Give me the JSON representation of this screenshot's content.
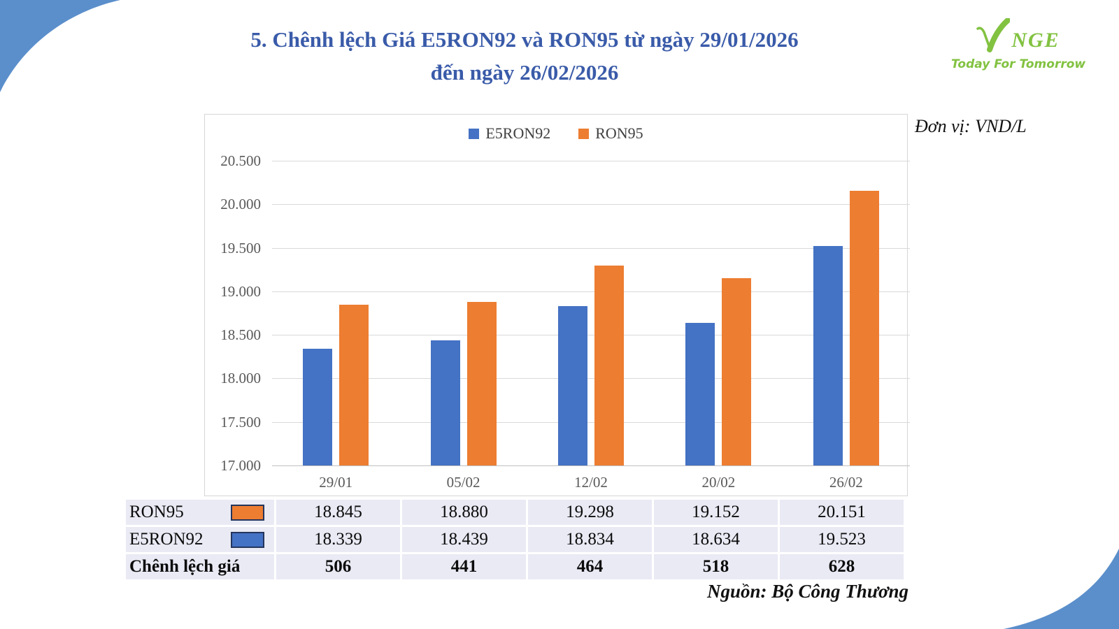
{
  "page": {
    "title_line1": "5. Chênh lệch Giá E5RON92 và RON95 từ ngày 29/01/2026",
    "title_line2": "đến ngày 26/02/2026",
    "unit_label": "Đơn vị: VND/L",
    "source_label": "Nguồn: Bộ Công Thương"
  },
  "logo": {
    "brand_rest": "NGE",
    "tagline": "Today For Tomorrow",
    "color": "#82C241"
  },
  "colors": {
    "title_blue": "#3A5BA9",
    "series_e5ron92": "#4472C4",
    "series_ron95": "#ED7D31",
    "gridline": "#D9D9D9",
    "axis_text": "#595959",
    "table_row_bg": "#E9EAF4",
    "swatch_border": "#24355C",
    "swoosh_blue": "#5B8FCB"
  },
  "chart_data": {
    "type": "bar",
    "categories": [
      "29/01",
      "05/02",
      "12/02",
      "20/02",
      "26/02"
    ],
    "series": [
      {
        "name": "E5RON92",
        "color_key": "series_e5ron92",
        "values": [
          18339,
          18439,
          18834,
          18634,
          19523
        ]
      },
      {
        "name": "RON95",
        "color_key": "series_ron95",
        "values": [
          18845,
          18880,
          19298,
          19152,
          20151
        ]
      }
    ],
    "ylim": [
      17000,
      20500
    ],
    "ytick_step": 500,
    "ytick_labels": [
      "17.000",
      "17.500",
      "18.000",
      "18.500",
      "19.000",
      "19.500",
      "20.000",
      "20.500"
    ],
    "grid": true,
    "legend_position": "top-center",
    "unit": "VND/L",
    "title": "Chênh lệch Giá E5RON92 và RON95 từ ngày 29/01/2026 đến ngày 26/02/2026"
  },
  "table": {
    "rows": [
      {
        "label": "RON95",
        "swatch": "series_ron95",
        "bold": false,
        "values": [
          "18.845",
          "18.880",
          "19.298",
          "19.152",
          "20.151"
        ]
      },
      {
        "label": "E5RON92",
        "swatch": "series_e5ron92",
        "bold": false,
        "values": [
          "18.339",
          "18.439",
          "18.834",
          "18.634",
          "19.523"
        ]
      },
      {
        "label": "Chênh lệch giá",
        "swatch": null,
        "bold": true,
        "values": [
          "506",
          "441",
          "464",
          "518",
          "628"
        ]
      }
    ]
  }
}
